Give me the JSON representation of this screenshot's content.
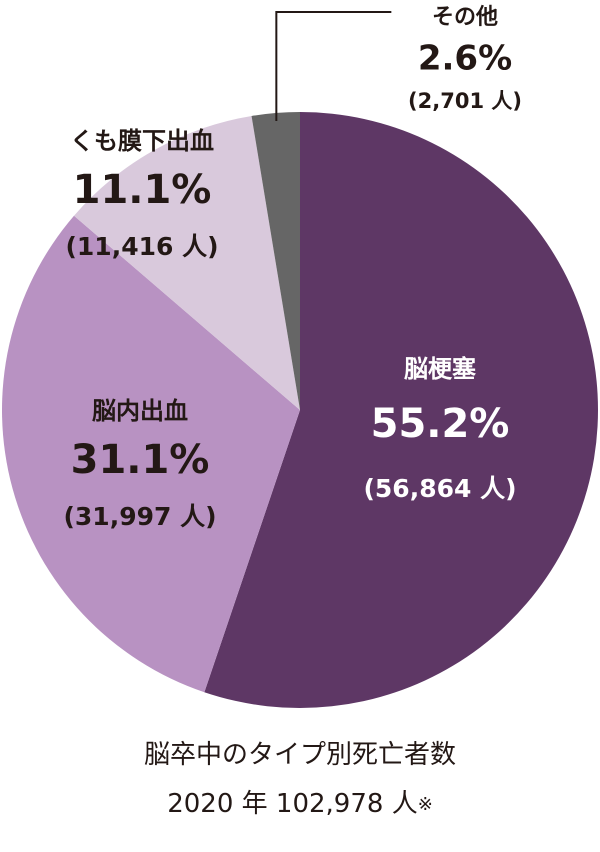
{
  "chart_data": {
    "type": "pie",
    "caption": "脳卒中のタイプ別死亡者数",
    "caption2": {
      "year": "2020 年",
      "total": "102,978 人",
      "mark": "※"
    },
    "slices": [
      {
        "label": "脳梗塞",
        "percent": 55.2,
        "percent_label": "55.2%",
        "count_label": "(56,864 人)",
        "color": "#5e3765",
        "text_color": "#ffffff"
      },
      {
        "label": "脳内出血",
        "percent": 31.1,
        "percent_label": "31.1%",
        "count_label": "(31,997 人)",
        "color": "#b892c2",
        "text_color": "#231815"
      },
      {
        "label": "くも膜下出血",
        "percent": 11.1,
        "percent_label": "11.1%",
        "count_label": "(11,416 人)",
        "color": "#d9c9dc",
        "text_color": "#231815"
      },
      {
        "label": "その他",
        "percent": 2.6,
        "percent_label": "2.6%",
        "count_label": "(2,701 人)",
        "color": "#666666",
        "text_color": "#231815"
      }
    ]
  }
}
